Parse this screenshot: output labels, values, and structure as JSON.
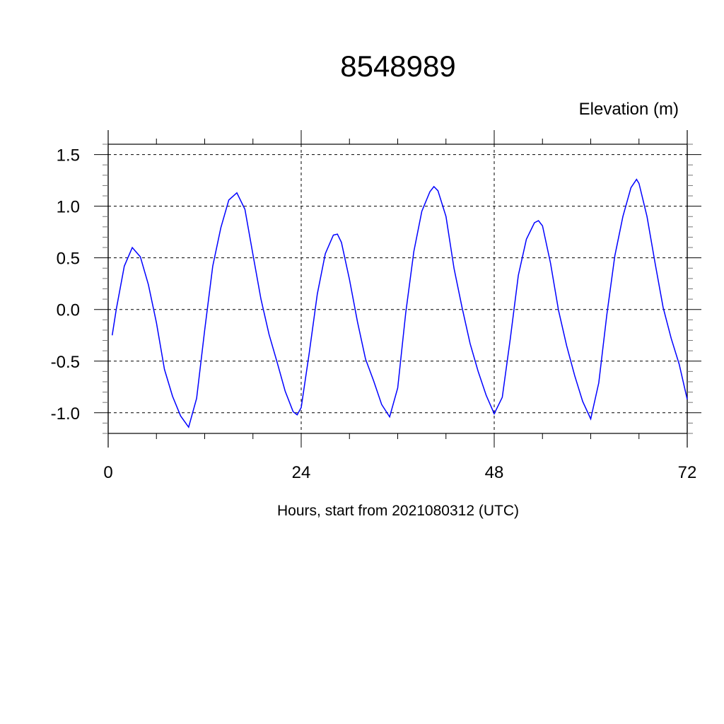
{
  "chart_data": {
    "type": "line",
    "title": "8548989",
    "ylabel": "Elevation (m)",
    "xlabel": "Hours, start from 2021080312 (UTC)",
    "xlim": [
      0,
      72
    ],
    "ylim": [
      -1.2,
      1.6
    ],
    "x_ticks": [
      0,
      24,
      48,
      72
    ],
    "x_tick_labels": [
      "0",
      "24",
      "48",
      "72"
    ],
    "y_ticks": [
      1.5,
      1.0,
      0.5,
      0.0,
      -0.5,
      -1.0
    ],
    "y_tick_labels": [
      "1.5",
      "1.0",
      "0.5",
      "0.0",
      "-0.5",
      "-1.0"
    ],
    "grid": "dashed at y ticks and at x=24, 48",
    "line_color": "#0000ff",
    "series": [
      {
        "x": [
          0.5,
          1,
          2,
          3,
          4,
          5,
          6,
          7,
          8,
          9,
          10,
          11,
          12,
          13,
          14,
          15,
          16,
          17,
          18,
          19,
          20,
          21,
          22,
          23,
          23.5,
          24,
          25,
          26,
          27,
          28,
          28.5,
          29,
          30,
          31,
          32,
          33,
          34,
          35,
          36,
          37,
          38,
          39,
          40,
          40.5,
          41,
          42,
          43,
          44,
          45,
          46,
          47,
          48,
          49,
          50,
          51,
          52,
          53,
          53.5,
          54,
          55,
          56,
          57,
          58,
          59,
          60,
          61,
          62,
          63,
          64,
          65,
          65.7,
          66,
          67,
          68,
          69,
          70,
          71,
          72
        ],
        "y": [
          -0.25,
          0.0,
          0.42,
          0.6,
          0.51,
          0.24,
          -0.13,
          -0.58,
          -0.84,
          -1.03,
          -1.14,
          -0.86,
          -0.2,
          0.42,
          0.79,
          1.06,
          1.13,
          0.97,
          0.53,
          0.1,
          -0.24,
          -0.51,
          -0.79,
          -0.99,
          -1.02,
          -0.95,
          -0.42,
          0.15,
          0.54,
          0.72,
          0.73,
          0.65,
          0.29,
          -0.12,
          -0.48,
          -0.69,
          -0.92,
          -1.04,
          -0.76,
          -0.03,
          0.56,
          0.95,
          1.14,
          1.19,
          1.15,
          0.9,
          0.4,
          0.02,
          -0.33,
          -0.6,
          -0.83,
          -1.01,
          -0.85,
          -0.28,
          0.33,
          0.68,
          0.84,
          0.86,
          0.81,
          0.45,
          -0.01,
          -0.35,
          -0.64,
          -0.89,
          -1.06,
          -0.71,
          -0.05,
          0.52,
          0.9,
          1.18,
          1.26,
          1.22,
          0.9,
          0.45,
          0.02,
          -0.28,
          -0.53,
          -0.87
        ]
      }
    ]
  }
}
